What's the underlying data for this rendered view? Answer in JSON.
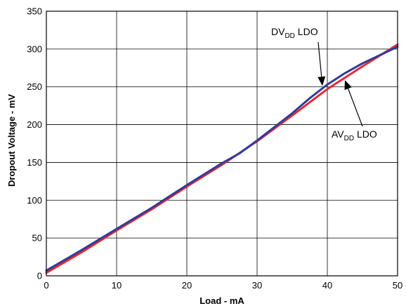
{
  "chart_data": {
    "type": "line",
    "title": "",
    "xlabel": "Load - mA",
    "ylabel": "Dropout Voltage - mV",
    "xlim": [
      0,
      50
    ],
    "ylim": [
      0,
      350
    ],
    "x_ticks": [
      "0",
      "10",
      "20",
      "30",
      "40",
      "50"
    ],
    "y_ticks": [
      "0",
      "50",
      "100",
      "150",
      "200",
      "250",
      "300",
      "350"
    ],
    "grid": true,
    "series": [
      {
        "name": "DVDD LDO",
        "color": "#2f3c9a",
        "x": [
          0,
          5,
          10,
          15,
          20,
          25,
          27.5,
          30,
          32.5,
          35,
          37.5,
          40,
          42.5,
          45,
          47.5,
          50
        ],
        "y": [
          7,
          34,
          62,
          90,
          120,
          149,
          162,
          179,
          197,
          215,
          235,
          253,
          268,
          281,
          292,
          303
        ]
      },
      {
        "name": "AVDD LDO",
        "color": "#e52a2f",
        "x": [
          0,
          5,
          10,
          15,
          20,
          25,
          30,
          35,
          40,
          45,
          50
        ],
        "y": [
          4,
          31,
          60,
          88,
          118,
          147,
          178,
          212,
          247,
          277,
          306
        ]
      }
    ],
    "annotations": [
      {
        "main": "DV",
        "sub": "DD",
        "tail": " LDO",
        "target_series": "DVDD LDO",
        "target_x": 39.5
      },
      {
        "main": "AV",
        "sub": "DD",
        "tail": " LDO",
        "target_series": "AVDD LDO",
        "target_x": 42.3
      }
    ]
  }
}
